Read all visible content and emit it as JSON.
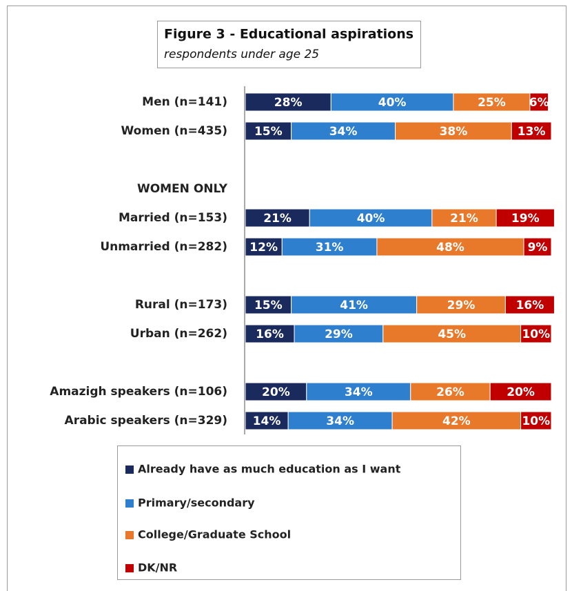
{
  "chart_data": {
    "type": "stacked-bar",
    "orientation": "horizontal",
    "title": "Figure 3 - Educational aspirations",
    "subtitle": "respondents under age 25",
    "categories": [
      "Men (n=141)",
      "Women (n=435)",
      null,
      "WOMEN ONLY",
      "Married (n=153)",
      "Unmarried (n=282)",
      null,
      "Rural (n=173)",
      "Urban (n=262)",
      null,
      "Amazigh speakers (n=106)",
      "Arabic speakers (n=329)"
    ],
    "xlim": [
      0,
      100
    ],
    "series": [
      {
        "name": "Already have as much education as I want",
        "color": "#1b2a5c",
        "values": [
          28,
          15,
          null,
          null,
          21,
          12,
          null,
          15,
          16,
          null,
          20,
          14
        ],
        "value_labels": [
          "28%",
          "15%",
          null,
          null,
          "21%",
          "12%",
          null,
          "15%",
          "16%",
          null,
          "20%",
          "14%"
        ]
      },
      {
        "name": "Primary/secondary",
        "color": "#2f7fcf",
        "values": [
          40,
          34,
          null,
          null,
          40,
          31,
          null,
          41,
          29,
          null,
          34,
          34
        ],
        "value_labels": [
          "40%",
          "34%",
          null,
          null,
          "40%",
          "31%",
          null,
          "41%",
          "29%",
          null,
          "34%",
          "34%"
        ]
      },
      {
        "name": "College/Graduate School",
        "color": "#e8792b",
        "values": [
          25,
          38,
          null,
          null,
          21,
          48,
          null,
          29,
          45,
          null,
          26,
          42
        ],
        "value_labels": [
          "25%",
          "38%",
          null,
          null,
          "21%",
          "48%",
          null,
          "29%",
          "45%",
          null,
          "26%",
          "42%"
        ]
      },
      {
        "name": "DK/NR",
        "color": "#c00000",
        "values": [
          6,
          13,
          null,
          null,
          19,
          9,
          null,
          16,
          10,
          null,
          20,
          10
        ],
        "value_labels": [
          "6%",
          "13%",
          null,
          null,
          "19%",
          "9%",
          null,
          "16%",
          "10%",
          null,
          "20%",
          "10%"
        ]
      }
    ]
  }
}
